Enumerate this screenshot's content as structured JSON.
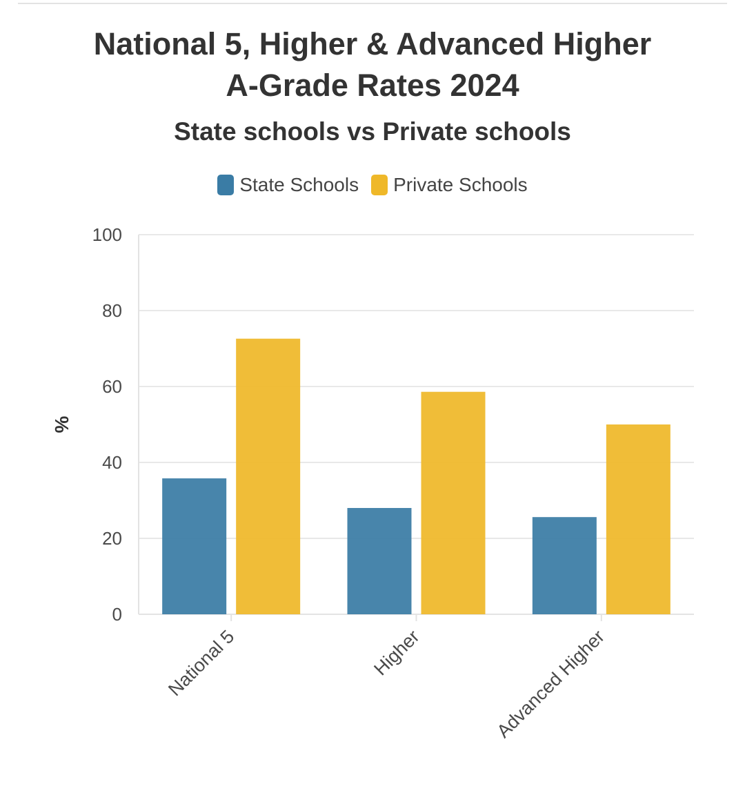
{
  "chart_data": {
    "type": "bar",
    "title": [
      "National 5, Higher & Advanced Higher",
      "A-Grade Rates 2024"
    ],
    "subtitle": "State schools vs Private schools",
    "xlabel": "",
    "ylabel": "%",
    "ylim": [
      0,
      100
    ],
    "yticks": [
      0,
      20,
      40,
      60,
      80,
      100
    ],
    "grid": true,
    "legend_position": "top-center",
    "categories": [
      "National 5",
      "Higher",
      "Advanced Higher"
    ],
    "series": [
      {
        "name": "State Schools",
        "color": "#3a7ca5",
        "values": [
          35.8,
          28.0,
          25.6
        ]
      },
      {
        "name": "Private Schools",
        "color": "#efb829",
        "values": [
          72.6,
          58.6,
          50.0
        ]
      }
    ]
  }
}
